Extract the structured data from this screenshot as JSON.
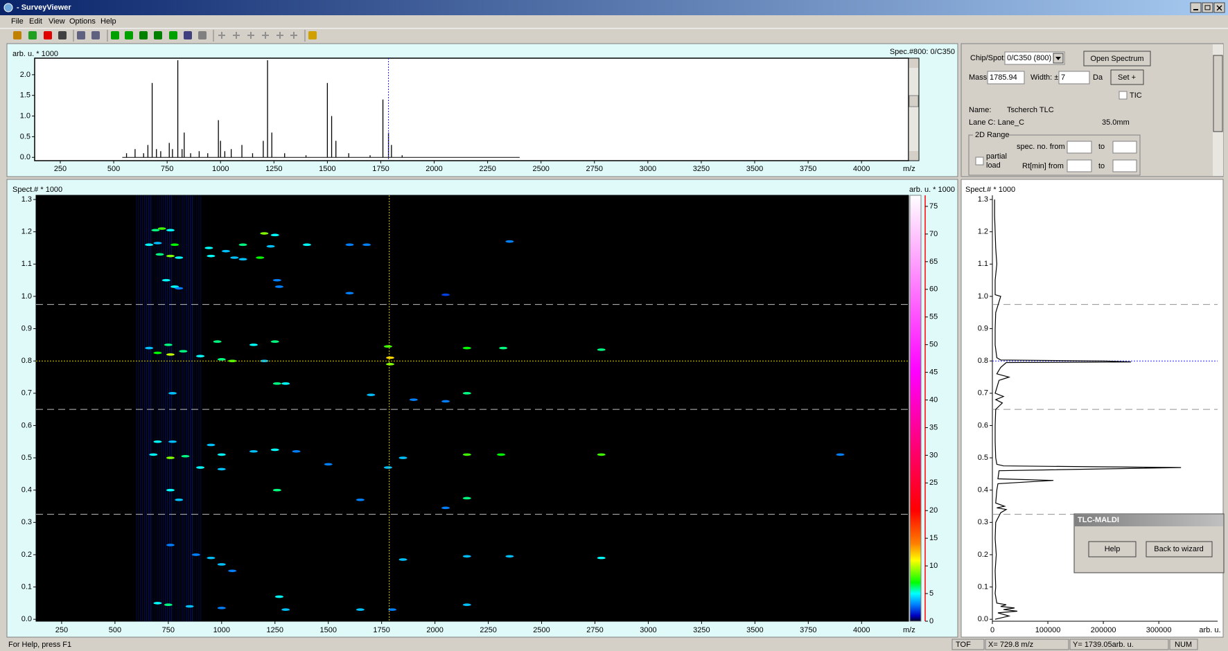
{
  "window": {
    "title": "- SurveyViewer"
  },
  "menu": [
    "File",
    "Edit",
    "View",
    "Options",
    "Help"
  ],
  "top_spectrum": {
    "y_label": "arb. u. * 1000",
    "x_label": "m/z",
    "spec_info": "Spec.#800: 0/C350",
    "xlim": [
      130,
      4220
    ],
    "ylim": [
      -0.08,
      2.4
    ],
    "xticks": [
      250,
      500,
      750,
      1000,
      1250,
      1500,
      1750,
      2000,
      2250,
      2500,
      2750,
      3000,
      3250,
      3500,
      3750,
      4000
    ],
    "yticks": [
      {
        "value": 0,
        "label": "0.0"
      },
      0.5,
      {
        "value": 1,
        "label": "1.0"
      },
      1.5,
      {
        "value": 2,
        "label": "2.0"
      }
    ],
    "peaks": {
      "mz": [
        560,
        600,
        640,
        660,
        680,
        700,
        720,
        760,
        775,
        800,
        820,
        830,
        860,
        900,
        940,
        990,
        1000,
        1020,
        1050,
        1100,
        1150,
        1200,
        1220,
        1240,
        1300,
        1400,
        1500,
        1520,
        1540,
        1600,
        1700,
        1760,
        1786,
        1800,
        1850
      ],
      "values": [
        0.1,
        0.2,
        0.1,
        0.3,
        1.8,
        0.2,
        0.15,
        0.35,
        0.2,
        2.35,
        0.2,
        0.6,
        0.1,
        0.15,
        0.1,
        0.9,
        0.4,
        0.15,
        0.2,
        0.3,
        0.1,
        0.4,
        2.35,
        0.6,
        0.1,
        0.05,
        1.8,
        1.0,
        0.4,
        0.1,
        0.05,
        1.4,
        0.6,
        0.3,
        0.05
      ]
    }
  },
  "controls": {
    "chip_spot_label": "Chip/Spot:",
    "chip_spot": "0/C350 (800)",
    "open_spectrum": "Open Spectrum",
    "mass_label": "Mass:",
    "mass": 1785.94,
    "width_label": "Width: ±",
    "width": 7,
    "width_unit": "Da",
    "set_button": "Set +",
    "tic_label": "TIC",
    "name_label": "Name:",
    "name": "Tscherch TLC",
    "lane_label": "Lane C: Lane_C",
    "lane_position": "35.0mm",
    "range_group": "2D Range",
    "partial_load": [
      "partial",
      "load"
    ],
    "spec_from_label": "spec. no. from",
    "rt_from_label": "Rt[min] from",
    "to_label": "to"
  },
  "heatmap": {
    "y_label": "Spect.#  * 1000",
    "colorbar_label": "arb. u. * 1000",
    "x_label": "m/z",
    "xlim": [
      130,
      4220
    ],
    "ylim": [
      -0.006,
      1.313
    ],
    "xticks": [
      250,
      500,
      750,
      1000,
      1250,
      1500,
      1750,
      2000,
      2250,
      2500,
      2750,
      3000,
      3250,
      3500,
      3750,
      4000
    ],
    "yticks": [
      {
        "value": 0,
        "label": "0.0"
      },
      0.1,
      0.2,
      0.3,
      0.4,
      0.5,
      0.6,
      0.7,
      0.8,
      0.9,
      {
        "value": 1,
        "label": "1.0"
      },
      1.1,
      1.2,
      1.3
    ],
    "cursor_spec": 0.8,
    "lane_bounds": [
      0.325,
      0.65,
      0.975
    ],
    "colorbar_lim": [
      0,
      77
    ],
    "colorbar_ticks": [
      0,
      5,
      10,
      15,
      20,
      25,
      30,
      35,
      40,
      45,
      50,
      55,
      60,
      65,
      70,
      75
    ],
    "spots": [
      [
        690,
        1.205,
        6
      ],
      [
        720,
        1.21,
        8
      ],
      [
        760,
        1.205,
        5
      ],
      [
        1200,
        1.195,
        9
      ],
      [
        1250,
        1.19,
        5
      ],
      [
        660,
        1.16,
        5
      ],
      [
        700,
        1.165,
        4
      ],
      [
        780,
        1.16,
        7
      ],
      [
        940,
        1.15,
        5
      ],
      [
        1020,
        1.14,
        4
      ],
      [
        1100,
        1.16,
        6
      ],
      [
        1230,
        1.155,
        4
      ],
      [
        1400,
        1.16,
        5
      ],
      [
        1600,
        1.16,
        3
      ],
      [
        1680,
        1.16,
        3
      ],
      [
        2350,
        1.17,
        3
      ],
      [
        710,
        1.13,
        6
      ],
      [
        760,
        1.125,
        9
      ],
      [
        800,
        1.12,
        5
      ],
      [
        950,
        1.125,
        5
      ],
      [
        1060,
        1.12,
        4
      ],
      [
        1100,
        1.115,
        4
      ],
      [
        1180,
        1.12,
        7
      ],
      [
        740,
        1.05,
        5
      ],
      [
        1260,
        1.05,
        3
      ],
      [
        780,
        1.03,
        5
      ],
      [
        800,
        1.025,
        3
      ],
      [
        1270,
        1.03,
        3
      ],
      [
        1600,
        1.01,
        3
      ],
      [
        2050,
        1.005,
        2
      ],
      [
        660,
        0.84,
        4
      ],
      [
        750,
        0.85,
        6
      ],
      [
        980,
        0.86,
        6
      ],
      [
        1150,
        0.85,
        5
      ],
      [
        1250,
        0.86,
        6
      ],
      [
        1780,
        0.845,
        8
      ],
      [
        2150,
        0.84,
        7
      ],
      [
        2320,
        0.84,
        6
      ],
      [
        2780,
        0.835,
        6
      ],
      [
        700,
        0.825,
        7
      ],
      [
        760,
        0.82,
        10
      ],
      [
        820,
        0.83,
        6
      ],
      [
        900,
        0.815,
        5
      ],
      [
        1000,
        0.805,
        6
      ],
      [
        1050,
        0.8,
        8
      ],
      [
        1200,
        0.8,
        4
      ],
      [
        1790,
        0.81,
        12
      ],
      [
        1790,
        0.79,
        9
      ],
      [
        1260,
        0.73,
        6
      ],
      [
        1300,
        0.73,
        5
      ],
      [
        770,
        0.7,
        4
      ],
      [
        1700,
        0.695,
        4
      ],
      [
        2150,
        0.7,
        6
      ],
      [
        2050,
        0.675,
        3
      ],
      [
        1900,
        0.68,
        3
      ],
      [
        700,
        0.55,
        5
      ],
      [
        770,
        0.55,
        4
      ],
      [
        950,
        0.54,
        4
      ],
      [
        680,
        0.51,
        5
      ],
      [
        760,
        0.5,
        9
      ],
      [
        830,
        0.505,
        6
      ],
      [
        1000,
        0.51,
        5
      ],
      [
        1150,
        0.52,
        4
      ],
      [
        1250,
        0.525,
        5
      ],
      [
        1350,
        0.52,
        3
      ],
      [
        1850,
        0.5,
        4
      ],
      [
        2150,
        0.51,
        8
      ],
      [
        2310,
        0.51,
        7
      ],
      [
        2780,
        0.51,
        8
      ],
      [
        3900,
        0.51,
        3
      ],
      [
        900,
        0.47,
        5
      ],
      [
        1000,
        0.465,
        4
      ],
      [
        1500,
        0.48,
        3
      ],
      [
        1780,
        0.47,
        4
      ],
      [
        760,
        0.4,
        5
      ],
      [
        800,
        0.37,
        4
      ],
      [
        1260,
        0.4,
        6
      ],
      [
        1650,
        0.37,
        3
      ],
      [
        2150,
        0.375,
        6
      ],
      [
        2050,
        0.345,
        3
      ],
      [
        760,
        0.23,
        3
      ],
      [
        880,
        0.2,
        3
      ],
      [
        950,
        0.19,
        4
      ],
      [
        1000,
        0.17,
        4
      ],
      [
        1050,
        0.15,
        3
      ],
      [
        1850,
        0.185,
        4
      ],
      [
        2150,
        0.195,
        4
      ],
      [
        2350,
        0.195,
        4
      ],
      [
        2780,
        0.19,
        5
      ],
      [
        700,
        0.05,
        5
      ],
      [
        750,
        0.045,
        6
      ],
      [
        850,
        0.04,
        4
      ],
      [
        1000,
        0.035,
        3
      ],
      [
        1270,
        0.07,
        5
      ],
      [
        1300,
        0.03,
        4
      ],
      [
        1650,
        0.03,
        4
      ],
      [
        2150,
        0.045,
        4
      ],
      [
        1800,
        0.03,
        3
      ]
    ]
  },
  "tic_panel": {
    "y_label": "Spect.#  * 1000",
    "x_label": "arb. u.",
    "xlim": [
      0,
      406000
    ],
    "ylim": [
      -0.006,
      1.313
    ],
    "xticks": [
      0,
      100000,
      200000,
      300000
    ],
    "yticks": [
      {
        "value": 0,
        "label": "0.0"
      },
      0.1,
      0.2,
      0.3,
      0.4,
      0.5,
      0.6,
      0.7,
      0.8,
      0.9,
      {
        "value": 1,
        "label": "1.0"
      },
      1.1,
      1.2,
      1.3
    ],
    "spec": [
      0.0,
      0.01,
      0.02,
      0.025,
      0.03,
      0.035,
      0.04,
      0.045,
      0.05,
      0.08,
      0.1,
      0.15,
      0.2,
      0.25,
      0.3,
      0.33,
      0.34,
      0.345,
      0.35,
      0.36,
      0.4,
      0.42,
      0.43,
      0.435,
      0.46,
      0.47,
      0.475,
      0.48,
      0.5,
      0.55,
      0.6,
      0.65,
      0.67,
      0.68,
      0.69,
      0.7,
      0.74,
      0.75,
      0.76,
      0.78,
      0.795,
      0.797,
      0.8,
      0.803,
      0.81,
      0.85,
      0.9,
      0.95,
      1.0,
      1.005,
      1.05,
      1.1,
      1.15,
      1.2,
      1.25,
      1.3
    ],
    "values": [
      5000,
      30000,
      10000,
      45000,
      20000,
      40000,
      15000,
      25000,
      8000,
      5000,
      6000,
      5000,
      7000,
      5000,
      6000,
      15000,
      25000,
      8000,
      22000,
      6000,
      8000,
      10000,
      110000,
      10000,
      12000,
      340000,
      20000,
      8000,
      6000,
      5000,
      5000,
      6000,
      18000,
      6000,
      20000,
      5000,
      12000,
      30000,
      8000,
      15000,
      25000,
      250000,
      200000,
      15000,
      8000,
      5000,
      5000,
      6000,
      15000,
      5000,
      5000,
      8000,
      6000,
      5000,
      4000,
      4000
    ]
  },
  "dialog": {
    "title": "TLC-MALDI",
    "buttons": [
      "Help",
      "Back to wizard"
    ]
  },
  "status": {
    "help": "For Help, press F1",
    "mode": "TOF",
    "x": "X= 729.8  m/z",
    "y": "Y= 1739.05arb. u.",
    "num": "NUM"
  }
}
